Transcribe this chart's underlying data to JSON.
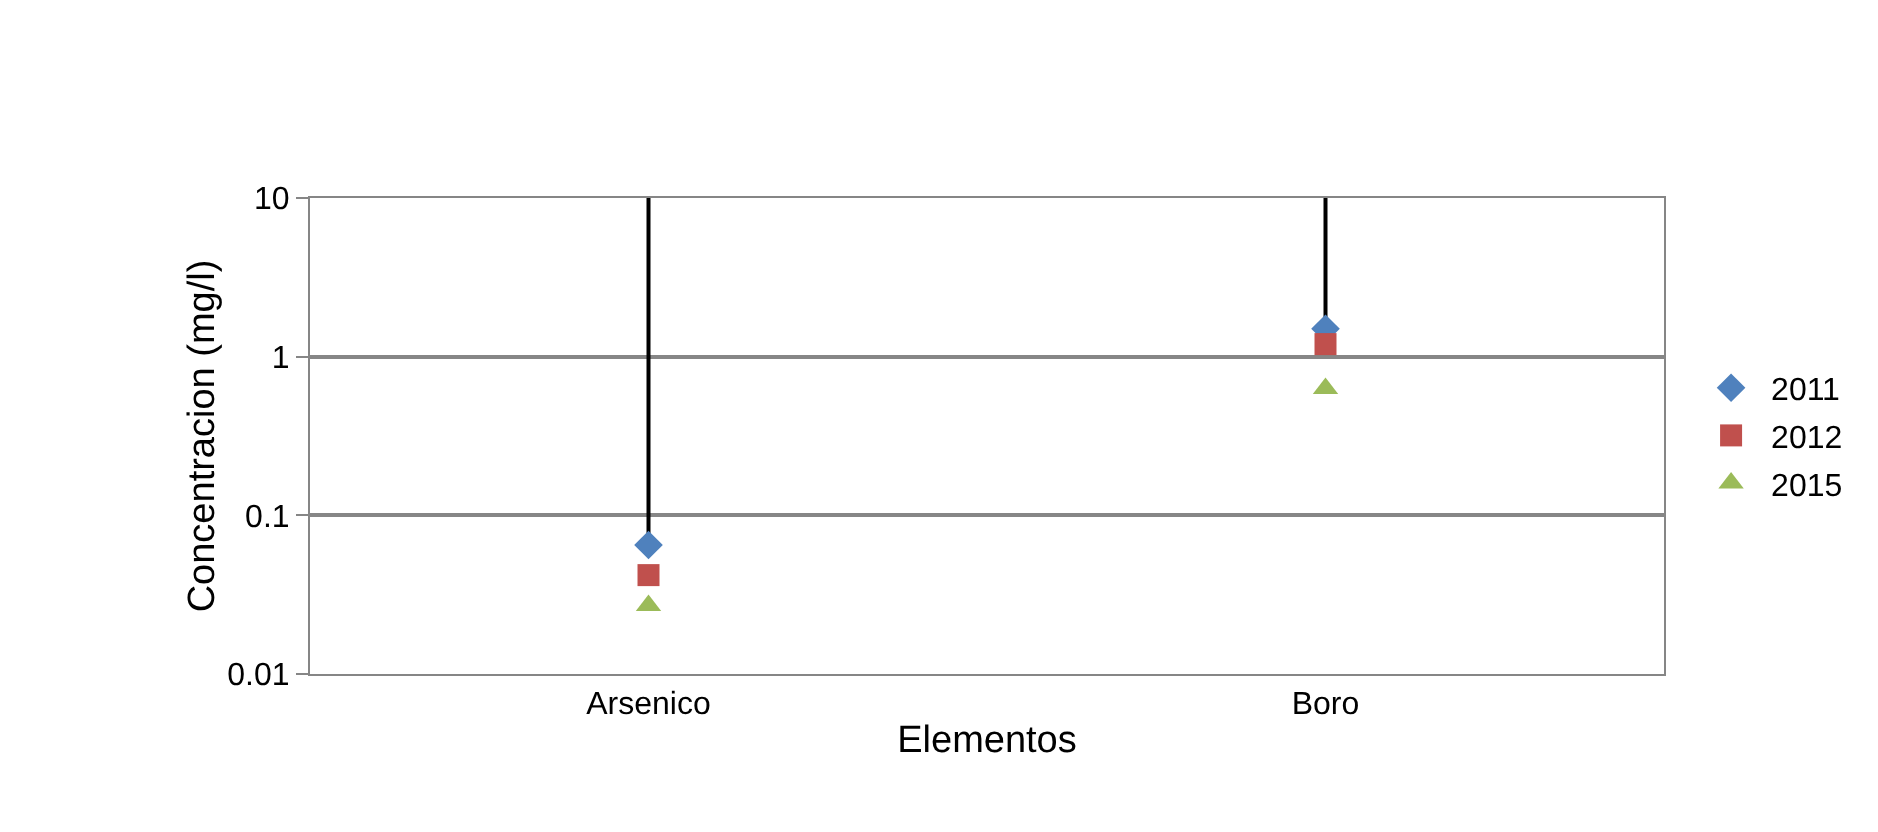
{
  "chart_data": {
    "type": "scatter",
    "xlabel": "Elementos",
    "ylabel": "Concentracion (mg/l)",
    "categories": [
      "Arsenico",
      "Boro"
    ],
    "series": [
      {
        "name": "2011",
        "color": "#4f81bd",
        "marker": "diamond",
        "values": [
          0.065,
          1.5
        ],
        "errors": [
          [
            0.065,
            10
          ],
          [
            1.5,
            10
          ]
        ]
      },
      {
        "name": "2012",
        "color": "#c0504d",
        "marker": "square",
        "values": [
          0.042,
          1.2
        ]
      },
      {
        "name": "2015",
        "color": "#9bbb59",
        "marker": "triangle",
        "values": [
          0.027,
          0.63
        ]
      }
    ],
    "log": "y",
    "ylim": [
      0.01,
      10
    ],
    "yticks": [
      0.01,
      0.1,
      1,
      10
    ],
    "grid": "y",
    "legend": "right"
  }
}
